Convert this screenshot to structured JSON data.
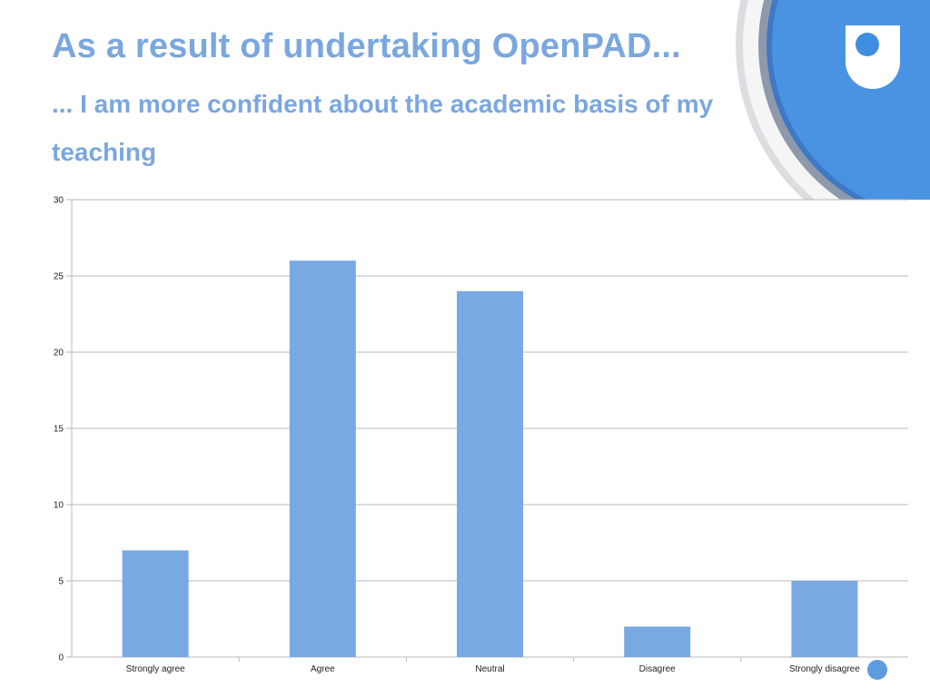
{
  "slide": {
    "title": "As a result of undertaking OpenPAD...",
    "subtitle": "... I am more confident about the academic basis of my teaching"
  },
  "logo": {
    "icon": "open-university-shield-icon",
    "color": "#3f8ee0"
  },
  "chart_data": {
    "type": "bar",
    "title": "",
    "xlabel": "",
    "ylabel": "",
    "categories": [
      "Strongly agree",
      "Agree",
      "Neutral",
      "Disagree",
      "Strongly disagree"
    ],
    "values": [
      7,
      26,
      24,
      2,
      5
    ],
    "ylim": [
      0,
      30
    ],
    "yticks": [
      0,
      5,
      10,
      15,
      20,
      25,
      30
    ],
    "grid": true,
    "bar_color": "#78a9e2"
  }
}
